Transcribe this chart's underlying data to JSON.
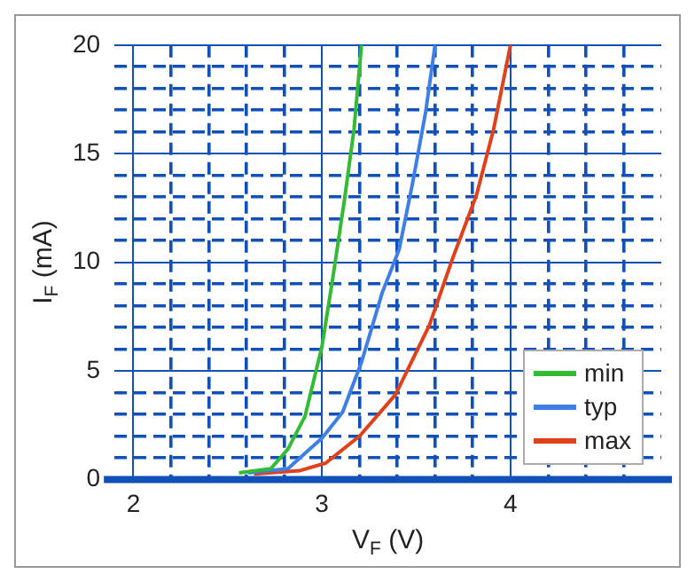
{
  "chart_data": {
    "type": "line",
    "xlabel": "V$_{F}$ (V)",
    "ylabel": "I$_{F}$ (mA)",
    "series": [
      {
        "name": "min",
        "color": "#33bb33",
        "x": [
          2.56,
          2.73,
          2.82,
          2.91,
          3.0,
          3.06,
          3.12,
          3.17,
          3.21
        ],
        "values": [
          0.3,
          0.5,
          1.4,
          2.9,
          6.1,
          9.4,
          12.9,
          16.1,
          20
        ]
      },
      {
        "name": "typ",
        "color": "#3d7fe6",
        "x": [
          2.61,
          2.82,
          3.0,
          3.11,
          3.21,
          3.32,
          3.41,
          3.48,
          3.55,
          3.6
        ],
        "values": [
          0.3,
          0.5,
          1.9,
          3.1,
          5.4,
          8.6,
          10.6,
          13.6,
          16.9,
          20
        ]
      },
      {
        "name": "max",
        "color": "#e0401a",
        "x": [
          2.64,
          2.88,
          3.02,
          3.2,
          3.39,
          3.57,
          3.69,
          3.82,
          3.91,
          4.0
        ],
        "values": [
          0.25,
          0.4,
          0.75,
          2,
          3.9,
          7.1,
          10.1,
          13.1,
          16.1,
          20
        ]
      }
    ],
    "xlim": [
      1.9,
      4.8
    ],
    "xticks": [
      2,
      {
        "value": 2.2,
        "label": null
      },
      {
        "value": 2.4,
        "label": null
      },
      {
        "value": 2.6,
        "label": null
      },
      {
        "value": 2.8,
        "label": null
      },
      3,
      {
        "value": 3.2,
        "label": null
      },
      {
        "value": 3.4,
        "label": null
      },
      {
        "value": 3.6,
        "label": null
      },
      {
        "value": 3.8,
        "label": null
      },
      4,
      {
        "value": 4.2,
        "label": null
      },
      {
        "value": 4.4,
        "label": null
      },
      {
        "value": 4.6,
        "label": null
      }
    ],
    "ylim": [
      0,
      20
    ],
    "yticks": [
      0,
      {
        "value": 1,
        "label": null
      },
      {
        "value": 2,
        "label": null
      },
      {
        "value": 3,
        "label": null
      },
      {
        "value": 4,
        "label": null
      },
      5,
      {
        "value": 6,
        "label": null
      },
      {
        "value": 7,
        "label": null
      },
      {
        "value": 8,
        "label": null
      },
      {
        "value": 9,
        "label": null
      },
      10,
      {
        "value": 11,
        "label": null
      },
      {
        "value": 12,
        "label": null
      },
      {
        "value": 13,
        "label": null
      },
      {
        "value": 14,
        "label": null
      },
      15,
      {
        "value": 16,
        "label": null
      },
      {
        "value": 17,
        "label": null
      },
      {
        "value": 18,
        "label": null
      },
      {
        "value": 19,
        "label": null
      },
      20
    ],
    "grid": true,
    "legend": "bottom right",
    "marker": "none",
    "line_style": "solid"
  }
}
